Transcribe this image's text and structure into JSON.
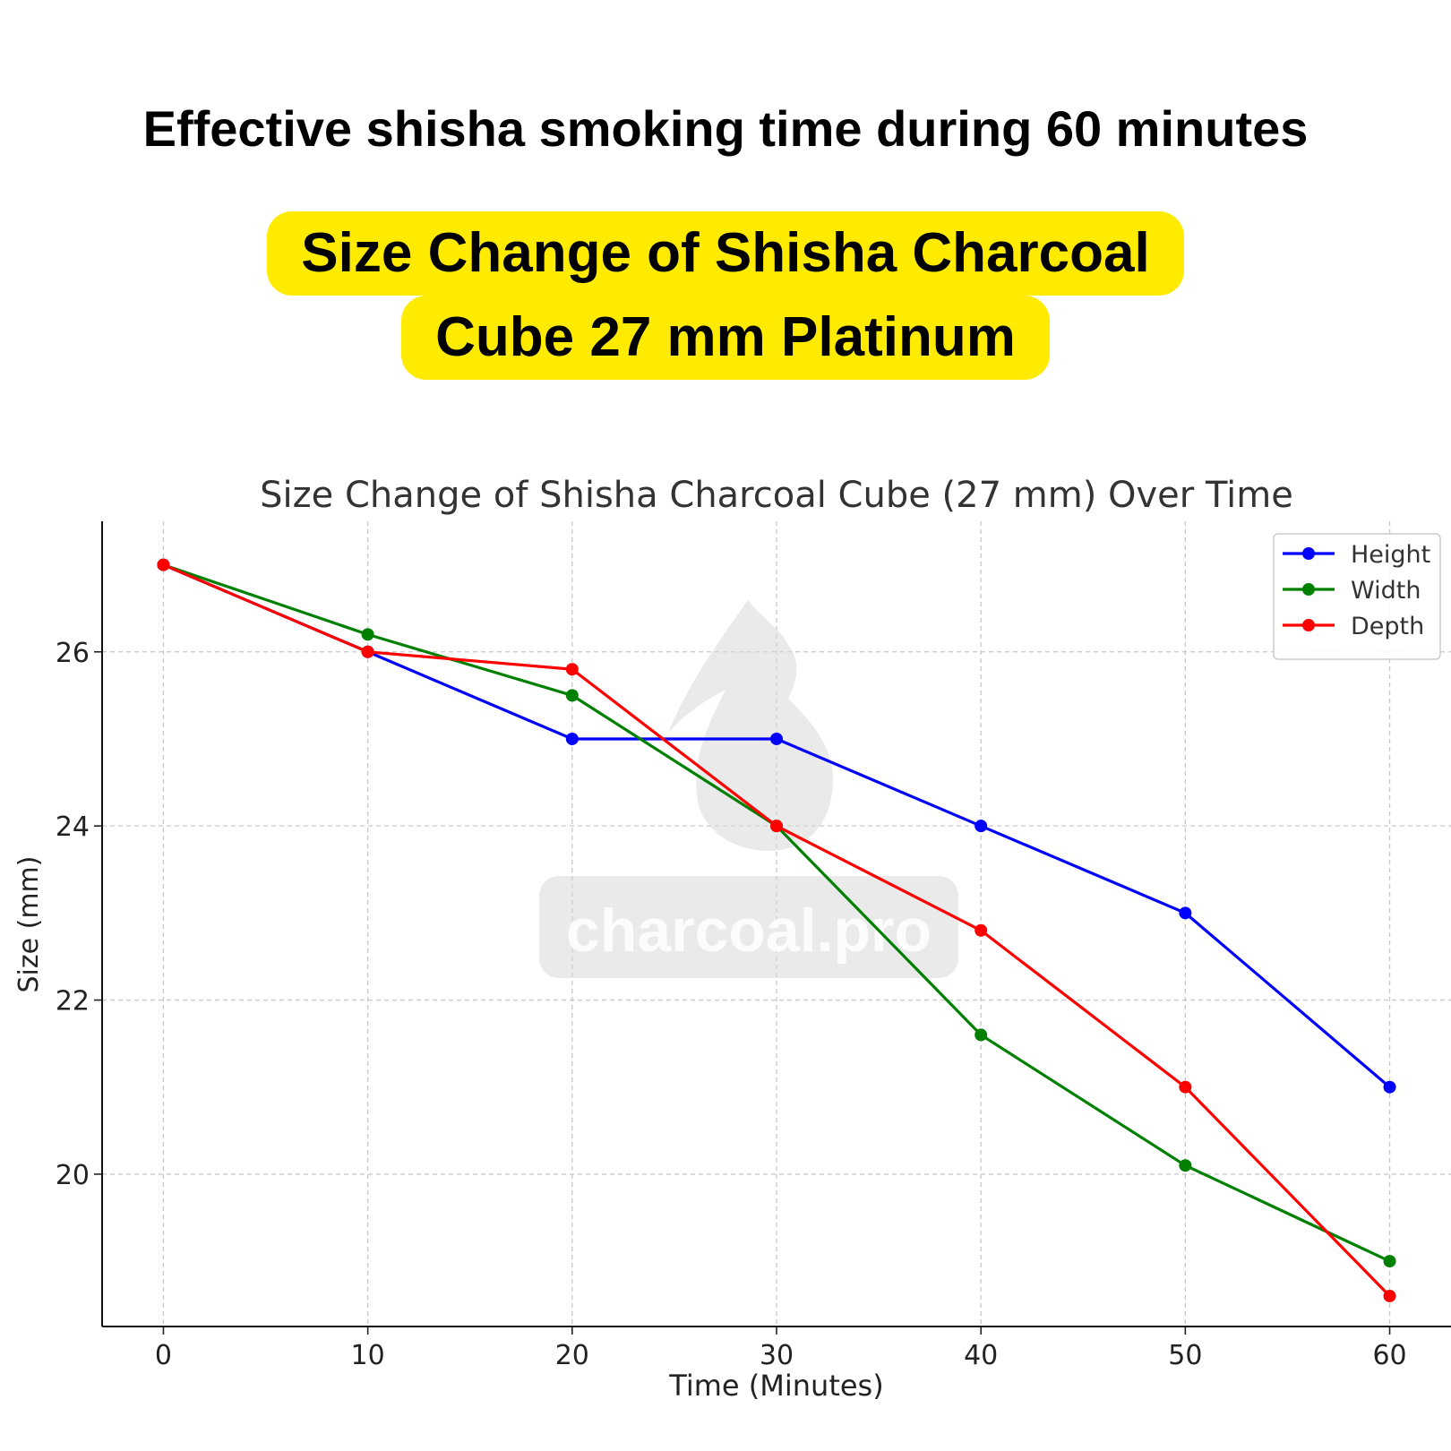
{
  "page": {
    "headline": "Effective shisha smoking time during 60 minutes",
    "highlight": {
      "line1": "Size Change of Shisha Charcoal",
      "line2": "Cube 27 mm Platinum",
      "background": "#FFEB00"
    },
    "watermark": {
      "text": "charcoal.pro",
      "icon": "flame-icon"
    }
  },
  "chart_data": {
    "type": "line",
    "title": "Size Change of Shisha Charcoal Cube (27 mm) Over Time",
    "xlabel": "Time (Minutes)",
    "ylabel": "Size (mm)",
    "x": [
      0,
      10,
      20,
      30,
      40,
      50,
      60
    ],
    "xticks": [
      "0",
      "10",
      "20",
      "30",
      "40",
      "50",
      "60"
    ],
    "yticks": [
      "20",
      "22",
      "24",
      "26"
    ],
    "xlim": [
      -3,
      63
    ],
    "ylim": [
      18.25,
      27.5
    ],
    "grid": true,
    "legend_position": "top-right",
    "series": [
      {
        "name": "Height",
        "color": "#0000FF",
        "values": [
          27,
          26,
          25,
          25,
          24,
          23,
          21
        ]
      },
      {
        "name": "Width",
        "color": "#008000",
        "values": [
          27,
          26.2,
          25.5,
          24,
          21.6,
          20.1,
          19
        ]
      },
      {
        "name": "Depth",
        "color": "#FF0000",
        "values": [
          27,
          26,
          25.8,
          24,
          22.8,
          21,
          18.6
        ]
      }
    ]
  }
}
